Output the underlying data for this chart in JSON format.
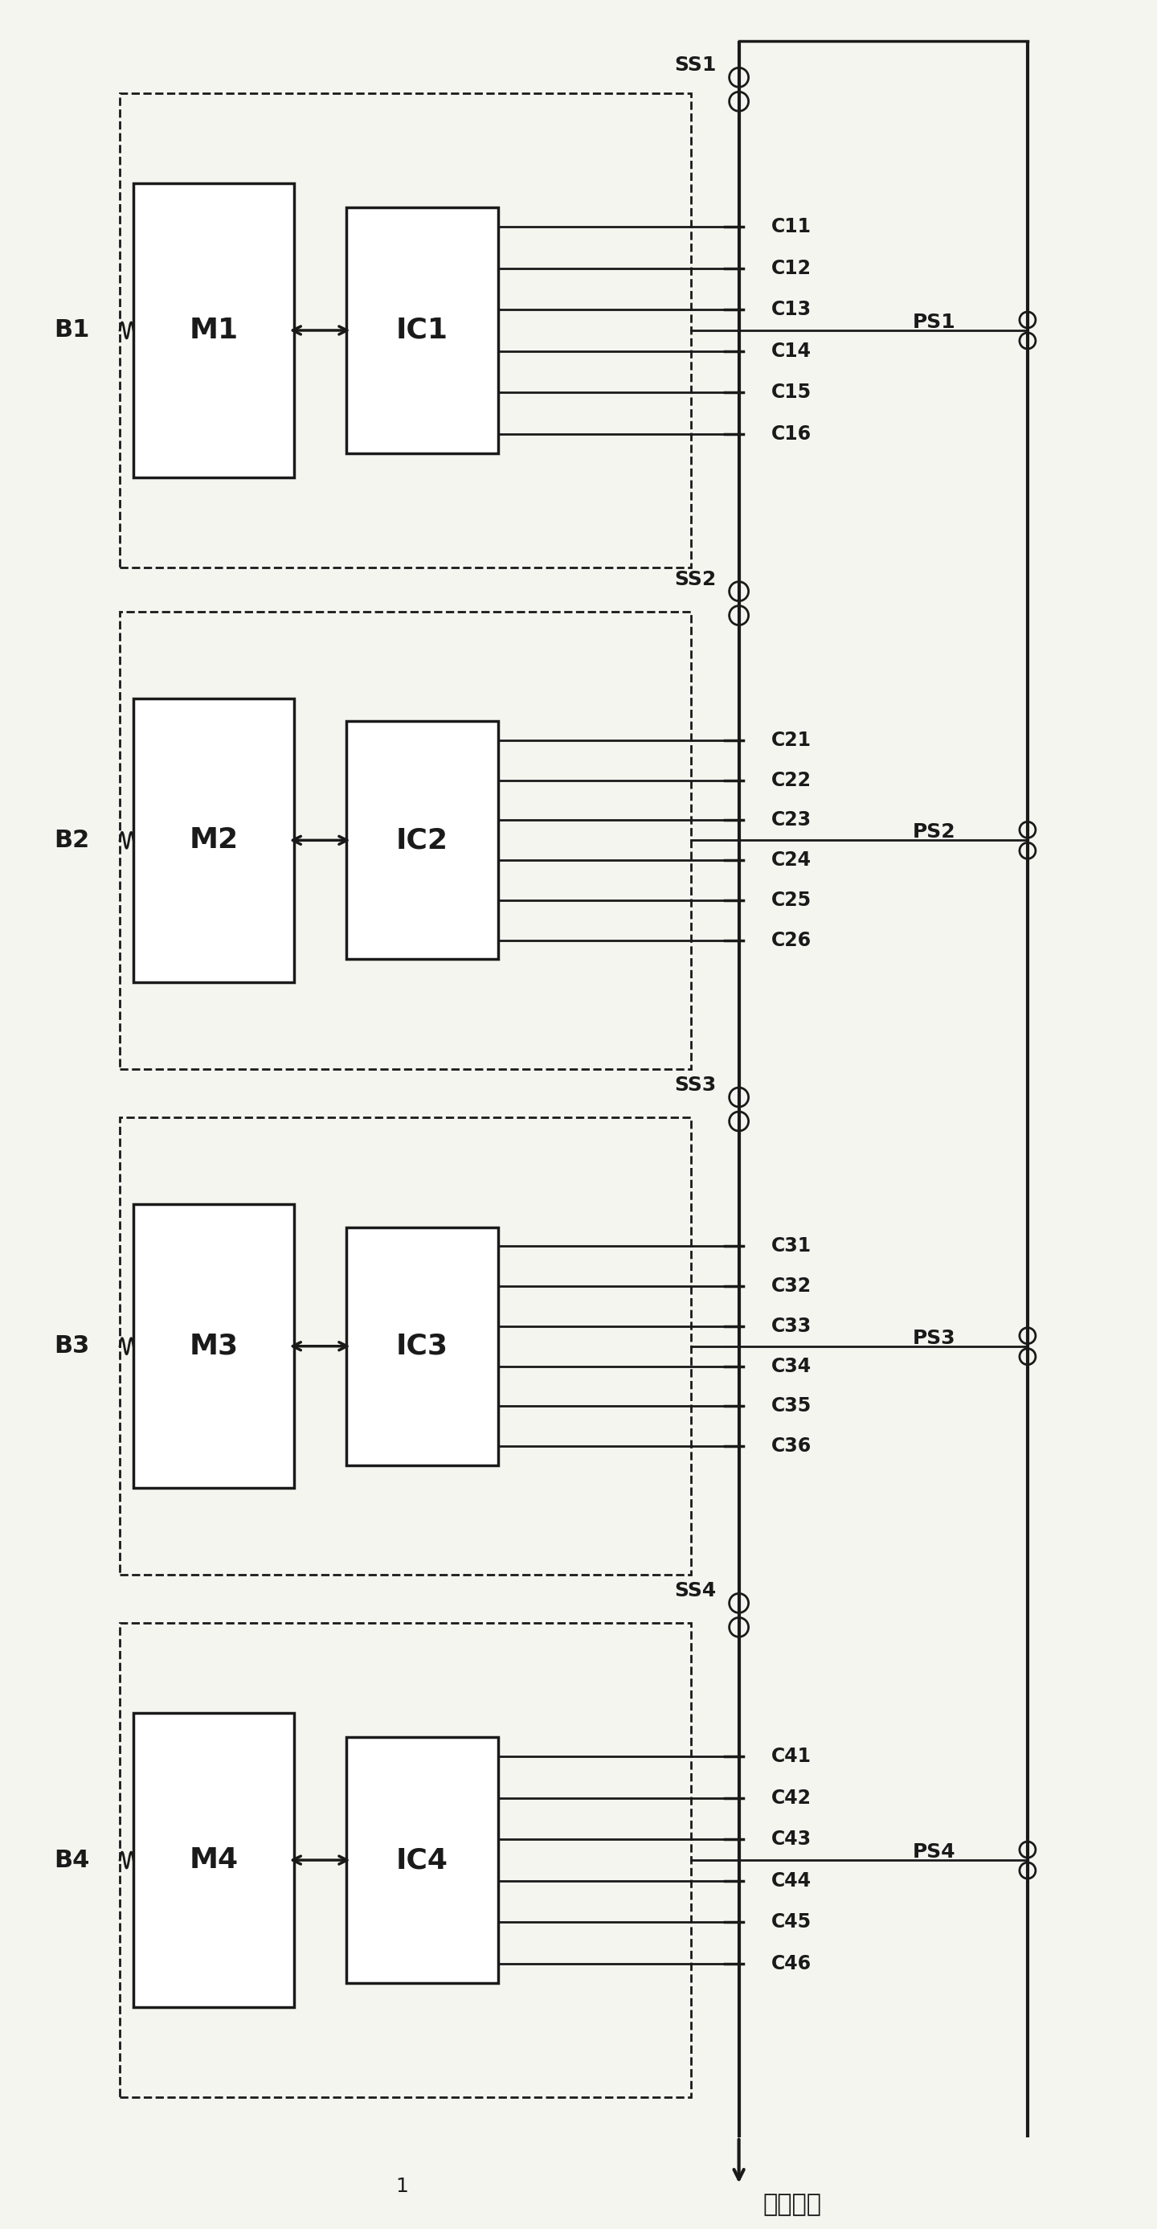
{
  "fig_width": 14.4,
  "fig_height": 27.73,
  "bg_color": "#f5f5f0",
  "line_color": "#1a1a1a",
  "blocks": [
    {
      "id": 1,
      "label_B": "B1",
      "label_M": "M1",
      "label_IC": "IC1",
      "label_SS": "SS1",
      "label_PS": "PS1",
      "cell_labels": [
        "C11",
        "C12",
        "C13",
        "C14",
        "C15",
        "C16"
      ]
    },
    {
      "id": 2,
      "label_B": "B2",
      "label_M": "M2",
      "label_IC": "IC2",
      "label_SS": "SS2",
      "label_PS": "PS2",
      "cell_labels": [
        "C21",
        "C22",
        "C23",
        "C24",
        "C25",
        "C26"
      ]
    },
    {
      "id": 3,
      "label_B": "B3",
      "label_M": "M3",
      "label_IC": "IC3",
      "label_SS": "SS3",
      "label_PS": "PS3",
      "cell_labels": [
        "C31",
        "C32",
        "C33",
        "C34",
        "C35",
        "C36"
      ]
    },
    {
      "id": 4,
      "label_B": "B4",
      "label_M": "M4",
      "label_IC": "IC4",
      "label_SS": "SS4",
      "label_PS": "PS4",
      "cell_labels": [
        "C41",
        "C42",
        "C43",
        "C44",
        "C45",
        "C46"
      ]
    }
  ],
  "bottom_label": "电池电流",
  "page_num": "1"
}
